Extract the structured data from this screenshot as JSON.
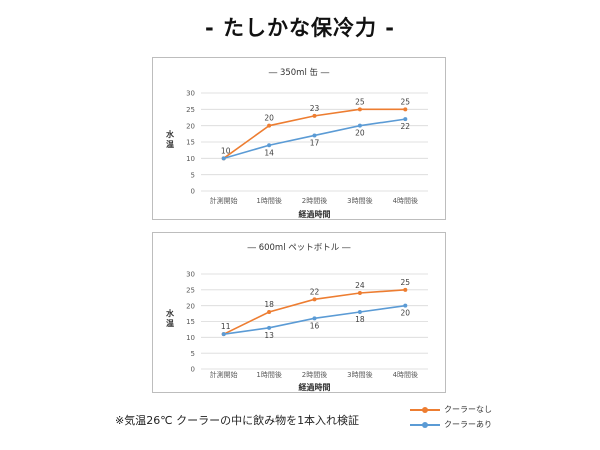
{
  "title": "- たしかな保冷力 -",
  "footnote": "※気温26℃ クーラーの中に飲み物を1本入れ検証",
  "colors": {
    "no_cooler": "#ED7D31",
    "with_cooler": "#5B9BD5",
    "grid": "#D9D9D9",
    "axis_text": "#595959"
  },
  "legend": [
    {
      "label": "クーラーなし",
      "color": "#ED7D31"
    },
    {
      "label": "クーラーあり",
      "color": "#5B9BD5"
    }
  ],
  "chart_data": [
    {
      "type": "line",
      "title": "― 350ml 缶 ―",
      "xlabel": "経過時間",
      "ylabel": "水温",
      "categories": [
        "計測開始",
        "1時間後",
        "2時間後",
        "3時間後",
        "4時間後"
      ],
      "ylim": [
        0,
        30
      ],
      "yticks": [
        0,
        5,
        10,
        15,
        20,
        25,
        30
      ],
      "grid": true,
      "series": [
        {
          "name": "クーラーなし",
          "values": [
            10,
            20,
            23,
            25,
            25
          ],
          "label_position": "above"
        },
        {
          "name": "クーラーあり",
          "values": [
            10,
            14,
            17,
            20,
            22
          ],
          "label_position": "below"
        }
      ],
      "point_labels": [
        "10",
        "20",
        "23",
        "25",
        "25",
        "14",
        "17",
        "20",
        "22"
      ]
    },
    {
      "type": "line",
      "title": "― 600ml ペットボトル ―",
      "xlabel": "経過時間",
      "ylabel": "水温",
      "categories": [
        "計測開始",
        "1時間後",
        "2時間後",
        "3時間後",
        "4時間後"
      ],
      "ylim": [
        0,
        30
      ],
      "yticks": [
        0,
        5,
        10,
        15,
        20,
        25,
        30
      ],
      "grid": true,
      "series": [
        {
          "name": "クーラーなし",
          "values": [
            11,
            18,
            22,
            24,
            25
          ],
          "label_position": "above"
        },
        {
          "name": "クーラーあり",
          "values": [
            11,
            13,
            16,
            18,
            20
          ],
          "label_position": "below"
        }
      ],
      "point_labels": [
        "11",
        "18",
        "22",
        "24",
        "25",
        "13",
        "16",
        "18",
        "20"
      ]
    }
  ]
}
